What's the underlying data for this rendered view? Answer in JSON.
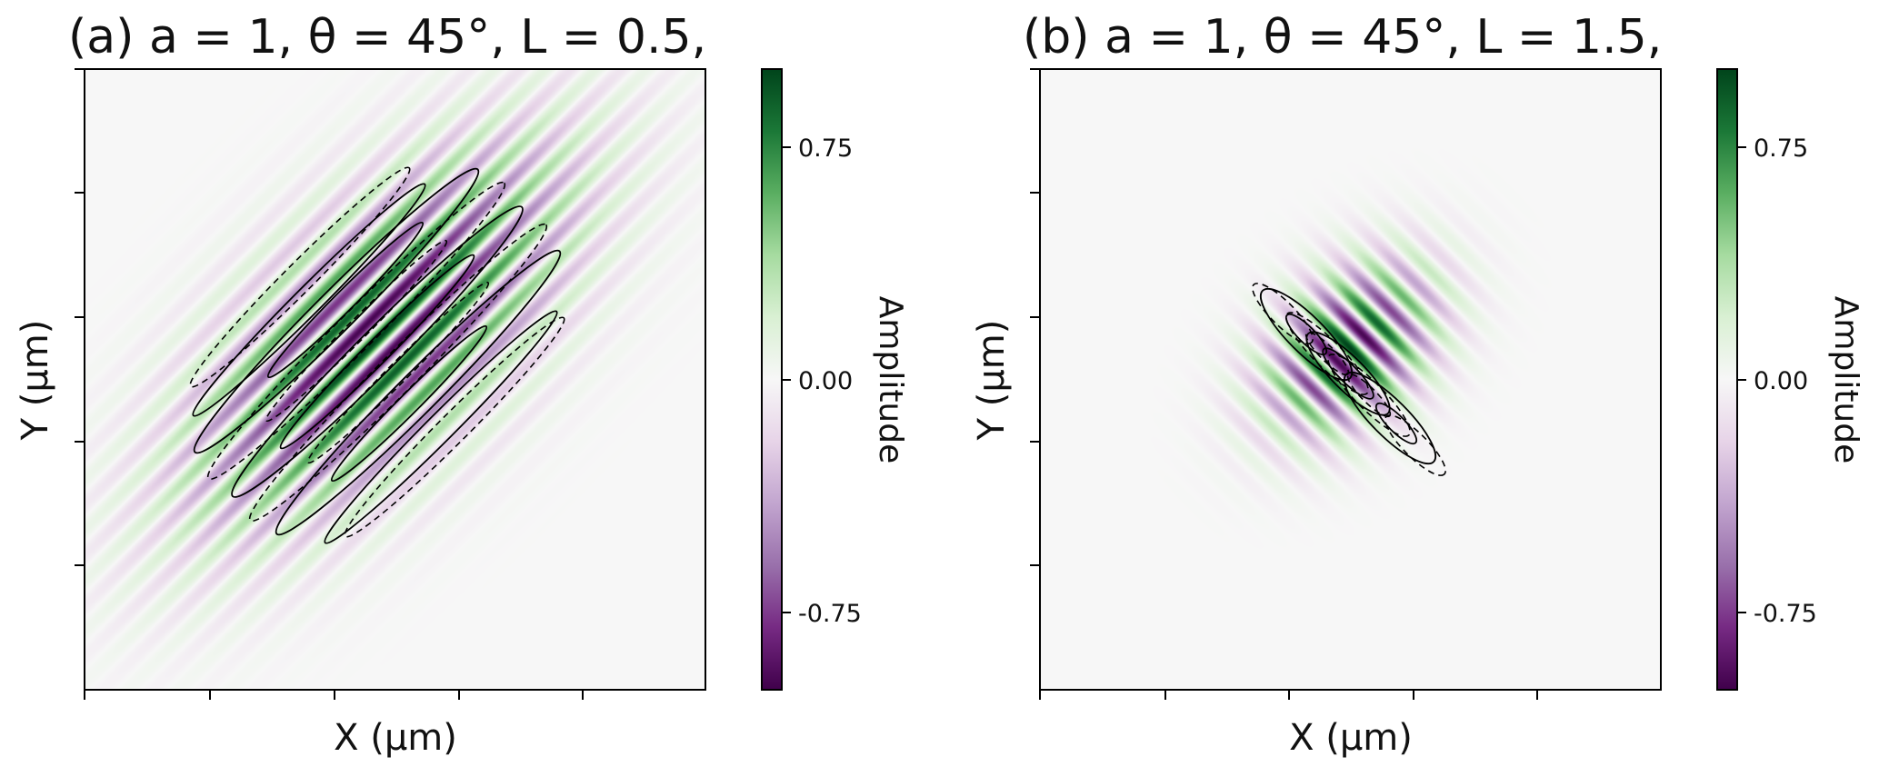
{
  "chart_data": [
    {
      "type": "heatmap",
      "panel": "(a)",
      "title": "(a) a = 1, θ = 45°, L = 0.5,",
      "xlabel": "X (μm)",
      "ylabel": "Y (μm)",
      "colorbar": {
        "label": "Amplitude",
        "ticks": [
          0.75,
          0.0,
          -0.75
        ],
        "tick_labels": [
          "0.75",
          "0.00",
          "-0.75"
        ],
        "range": [
          -1,
          1
        ],
        "colormap": "PRGn",
        "low_color": "#40004b",
        "mid_color": "#f7f7f7",
        "high_color": "#00441b"
      },
      "field": {
        "a": 1,
        "theta_deg": 45,
        "L": 0.5,
        "stripe_orientation_deg": 45,
        "pattern": "gaussian-modulated stripes along the diagonal, positive crest at centre"
      },
      "contours": {
        "positive_style": "solid",
        "negative_style": "dashed",
        "levels": [
          -0.5,
          -0.15,
          0.15,
          0.5
        ]
      },
      "x_ticks_labeled": false,
      "y_ticks_labeled": false
    },
    {
      "type": "heatmap",
      "panel": "(b)",
      "title": "(b) a = 1, θ = 45°, L = 1.5,",
      "xlabel": "X (μm)",
      "ylabel": "Y (μm)",
      "colorbar": {
        "label": "Amplitude",
        "ticks": [
          0.75,
          0.0,
          -0.75
        ],
        "tick_labels": [
          "0.75",
          "0.00",
          "-0.75"
        ],
        "range": [
          -1,
          1
        ],
        "colormap": "PRGn",
        "low_color": "#40004b",
        "mid_color": "#f7f7f7",
        "high_color": "#00441b"
      },
      "field": {
        "a": 1,
        "theta_deg": 45,
        "L": 1.5,
        "stripe_orientation_deg": -45,
        "pattern": "compact gaussian wave packet with stripes along the anti-diagonal, positive crest at centre"
      },
      "contours": {
        "positive_style": "solid",
        "negative_style": "dashed",
        "levels": [
          -0.5,
          -0.15,
          0.15,
          0.5
        ]
      },
      "x_ticks_labeled": false,
      "y_ticks_labeled": false
    }
  ]
}
